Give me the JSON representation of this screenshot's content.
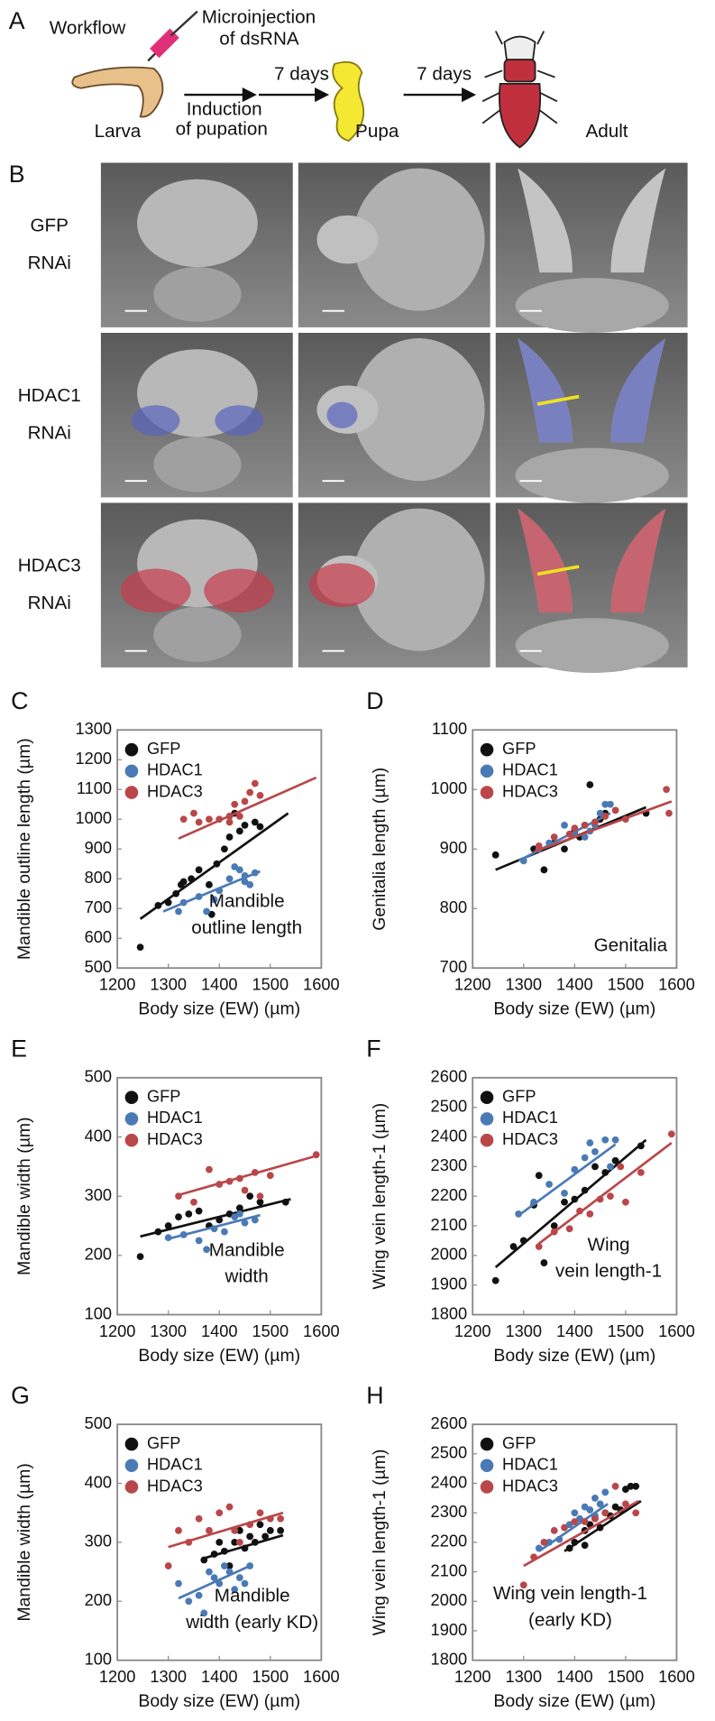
{
  "panel_a": {
    "letter": "A",
    "title": "Workflow",
    "injection": [
      "Microinjection",
      "of dsRNA"
    ],
    "stages": [
      "Larva",
      "Pupa",
      "Adult"
    ],
    "induction": [
      "Induction",
      "of pupation"
    ],
    "durations": [
      "7 days",
      "7 days"
    ]
  },
  "panel_b": {
    "letter": "B",
    "rows": [
      [
        "GFP",
        "RNAi"
      ],
      [
        "HDAC1",
        "RNAi"
      ],
      [
        "HDAC3",
        "RNAi"
      ]
    ]
  },
  "chart_data": [
    {
      "type": "scatter",
      "panel": "C",
      "xlabel": "Body size (EW) (µm)",
      "ylabel": "Mandible outline length (µm)",
      "annotation": [
        "Mandible",
        "outline length"
      ],
      "xlim": [
        1200,
        1600
      ],
      "xticks": [
        1200,
        1300,
        1400,
        1500,
        1600
      ],
      "ylim": [
        500,
        1300
      ],
      "yticks": [
        500,
        600,
        700,
        800,
        900,
        1000,
        1100,
        1200,
        1300
      ],
      "legend": "upper left",
      "series": [
        {
          "name": "GFP",
          "color": "#111111",
          "x": [
            1245,
            1280,
            1300,
            1315,
            1325,
            1330,
            1345,
            1360,
            1380,
            1385,
            1395,
            1410,
            1420,
            1430,
            1440,
            1450,
            1470,
            1480
          ],
          "values": [
            570,
            710,
            720,
            750,
            780,
            790,
            800,
            830,
            780,
            680,
            850,
            900,
            940,
            1020,
            960,
            980,
            990,
            975
          ],
          "fit_x": [
            1245,
            1535
          ],
          "fit_y": [
            665,
            1020
          ]
        },
        {
          "name": "HDAC1",
          "color": "#4a7ab5",
          "x": [
            1320,
            1330,
            1360,
            1375,
            1390,
            1400,
            1420,
            1430,
            1440,
            1450,
            1460,
            1470,
            1450
          ],
          "values": [
            690,
            720,
            740,
            690,
            730,
            760,
            800,
            840,
            830,
            810,
            780,
            820,
            790
          ],
          "fit_x": [
            1290,
            1480
          ],
          "fit_y": [
            690,
            825
          ]
        },
        {
          "name": "HDAC3",
          "color": "#b9474a",
          "x": [
            1330,
            1350,
            1360,
            1380,
            1400,
            1420,
            1430,
            1440,
            1450,
            1460,
            1470,
            1480,
            1420
          ],
          "values": [
            1000,
            1020,
            990,
            1000,
            1000,
            990,
            1050,
            1010,
            1060,
            1090,
            1120,
            1080,
            1010
          ],
          "fit_x": [
            1320,
            1590
          ],
          "fit_y": [
            935,
            1140
          ]
        }
      ]
    },
    {
      "type": "scatter",
      "panel": "D",
      "xlabel": "Body size (EW) (µm)",
      "ylabel": "Genitalia length (µm)",
      "annotation": [
        "Genitalia"
      ],
      "xlim": [
        1200,
        1600
      ],
      "xticks": [
        1200,
        1300,
        1400,
        1500,
        1600
      ],
      "ylim": [
        700,
        1100
      ],
      "yticks": [
        700,
        800,
        900,
        1000,
        1100
      ],
      "legend": "upper left",
      "series": [
        {
          "name": "GFP",
          "color": "#111111",
          "x": [
            1245,
            1320,
            1340,
            1360,
            1380,
            1400,
            1410,
            1420,
            1430,
            1440,
            1450,
            1460,
            1540
          ],
          "values": [
            890,
            900,
            865,
            910,
            900,
            930,
            920,
            940,
            1008,
            945,
            950,
            960,
            960
          ],
          "fit_x": [
            1245,
            1540
          ],
          "fit_y": [
            865,
            970
          ]
        },
        {
          "name": "HDAC1",
          "color": "#4a7ab5",
          "x": [
            1300,
            1330,
            1350,
            1380,
            1400,
            1420,
            1440,
            1450,
            1460,
            1470,
            1430
          ],
          "values": [
            880,
            900,
            910,
            940,
            925,
            920,
            940,
            960,
            975,
            975,
            930
          ],
          "fit_x": [
            1290,
            1470
          ],
          "fit_y": [
            880,
            960
          ]
        },
        {
          "name": "HDAC3",
          "color": "#b9474a",
          "x": [
            1330,
            1360,
            1390,
            1400,
            1420,
            1440,
            1460,
            1480,
            1500,
            1580,
            1585
          ],
          "values": [
            905,
            920,
            925,
            935,
            940,
            945,
            955,
            965,
            950,
            1000,
            960
          ],
          "fit_x": [
            1320,
            1590
          ],
          "fit_y": [
            895,
            980
          ]
        }
      ]
    },
    {
      "type": "scatter",
      "panel": "E",
      "xlabel": "Body size (EW) (µm)",
      "ylabel": "Mandible width (µm)",
      "annotation": [
        "Mandible",
        "width"
      ],
      "xlim": [
        1200,
        1600
      ],
      "xticks": [
        1200,
        1300,
        1400,
        1500,
        1600
      ],
      "ylim": [
        100,
        500
      ],
      "yticks": [
        100,
        200,
        300,
        400,
        500
      ],
      "legend": "upper left",
      "series": [
        {
          "name": "GFP",
          "color": "#111111",
          "x": [
            1245,
            1280,
            1300,
            1320,
            1340,
            1360,
            1380,
            1400,
            1420,
            1440,
            1460,
            1480,
            1530
          ],
          "values": [
            198,
            240,
            250,
            265,
            270,
            275,
            250,
            260,
            270,
            280,
            300,
            290,
            290
          ],
          "fit_x": [
            1245,
            1540
          ],
          "fit_y": [
            232,
            295
          ]
        },
        {
          "name": "HDAC1",
          "color": "#4a7ab5",
          "x": [
            1300,
            1330,
            1360,
            1375,
            1390,
            1410,
            1430,
            1450,
            1470,
            1440
          ],
          "values": [
            230,
            235,
            225,
            210,
            245,
            240,
            265,
            255,
            260,
            270
          ],
          "fit_x": [
            1300,
            1480
          ],
          "fit_y": [
            228,
            268
          ]
        },
        {
          "name": "HDAC3",
          "color": "#b9474a",
          "x": [
            1320,
            1350,
            1380,
            1400,
            1420,
            1440,
            1450,
            1470,
            1480,
            1500,
            1590
          ],
          "values": [
            300,
            290,
            345,
            320,
            325,
            330,
            310,
            340,
            300,
            335,
            370
          ],
          "fit_x": [
            1320,
            1590
          ],
          "fit_y": [
            302,
            368
          ]
        }
      ]
    },
    {
      "type": "scatter",
      "panel": "F",
      "xlabel": "Body size (EW) (µm)",
      "ylabel": "Wing vein length-1 (µm)",
      "annotation": [
        "Wing",
        "vein length-1"
      ],
      "xlim": [
        1200,
        1600
      ],
      "xticks": [
        1200,
        1300,
        1400,
        1500,
        1600
      ],
      "ylim": [
        1800,
        2600
      ],
      "yticks": [
        1800,
        1900,
        2000,
        2100,
        2200,
        2300,
        2400,
        2500,
        2600
      ],
      "legend": "upper left",
      "series": [
        {
          "name": "GFP",
          "color": "#111111",
          "x": [
            1245,
            1280,
            1300,
            1320,
            1330,
            1340,
            1360,
            1380,
            1400,
            1420,
            1440,
            1460,
            1480,
            1530
          ],
          "values": [
            1915,
            2030,
            2050,
            2170,
            2270,
            1975,
            2100,
            2180,
            2190,
            2220,
            2300,
            2280,
            2320,
            2370
          ],
          "fit_x": [
            1245,
            1540
          ],
          "fit_y": [
            1960,
            2390
          ]
        },
        {
          "name": "HDAC1",
          "color": "#4a7ab5",
          "x": [
            1290,
            1320,
            1350,
            1380,
            1400,
            1420,
            1430,
            1440,
            1460,
            1470,
            1480
          ],
          "values": [
            2140,
            2180,
            2240,
            2210,
            2290,
            2330,
            2380,
            2350,
            2390,
            2300,
            2390
          ],
          "fit_x": [
            1290,
            1480
          ],
          "fit_y": [
            2135,
            2375
          ]
        },
        {
          "name": "HDAC3",
          "color": "#b9474a",
          "x": [
            1330,
            1360,
            1390,
            1410,
            1430,
            1450,
            1470,
            1490,
            1500,
            1530,
            1590
          ],
          "values": [
            2030,
            2080,
            2090,
            2150,
            2140,
            2190,
            2200,
            2300,
            2180,
            2280,
            2410
          ],
          "fit_x": [
            1330,
            1590
          ],
          "fit_y": [
            2040,
            2380
          ]
        }
      ]
    },
    {
      "type": "scatter",
      "panel": "G",
      "xlabel": "Body size (EW) (µm)",
      "ylabel": "Mandible width (µm)",
      "annotation": [
        "Mandible",
        "width (early KD)"
      ],
      "xlim": [
        1200,
        1600
      ],
      "xticks": [
        1200,
        1300,
        1400,
        1500,
        1600
      ],
      "ylim": [
        100,
        500
      ],
      "yticks": [
        100,
        200,
        300,
        400,
        500
      ],
      "legend": "upper left",
      "series": [
        {
          "name": "GFP",
          "color": "#111111",
          "x": [
            1370,
            1390,
            1400,
            1410,
            1420,
            1430,
            1440,
            1450,
            1460,
            1470,
            1480,
            1490,
            1500,
            1520
          ],
          "values": [
            270,
            280,
            300,
            285,
            260,
            300,
            320,
            290,
            310,
            300,
            330,
            310,
            320,
            320
          ],
          "fit_x": [
            1370,
            1525
          ],
          "fit_y": [
            273,
            312
          ]
        },
        {
          "name": "HDAC1",
          "color": "#4a7ab5",
          "x": [
            1320,
            1340,
            1360,
            1370,
            1380,
            1390,
            1400,
            1410,
            1420,
            1430,
            1440,
            1450,
            1460
          ],
          "values": [
            230,
            200,
            210,
            180,
            250,
            240,
            230,
            260,
            250,
            220,
            240,
            230,
            260
          ],
          "fit_x": [
            1320,
            1465
          ],
          "fit_y": [
            205,
            262
          ]
        },
        {
          "name": "HDAC3",
          "color": "#b9474a",
          "x": [
            1300,
            1320,
            1340,
            1360,
            1380,
            1400,
            1420,
            1430,
            1440,
            1460,
            1480,
            1500,
            1520
          ],
          "values": [
            260,
            320,
            300,
            340,
            320,
            350,
            360,
            320,
            300,
            330,
            350,
            340,
            340
          ],
          "fit_x": [
            1300,
            1525
          ],
          "fit_y": [
            292,
            350
          ]
        }
      ]
    },
    {
      "type": "scatter",
      "panel": "H",
      "xlabel": "Body size (EW) (µm)",
      "ylabel": "Wing vein length-1 (µm)",
      "annotation": [
        "Wing vein length-1",
        "(early KD)"
      ],
      "xlim": [
        1200,
        1600
      ],
      "xticks": [
        1200,
        1300,
        1400,
        1500,
        1600
      ],
      "ylim": [
        1800,
        2600
      ],
      "yticks": [
        1800,
        1900,
        2000,
        2100,
        2200,
        2300,
        2400,
        2500,
        2600
      ],
      "legend": "upper left",
      "series": [
        {
          "name": "GFP",
          "color": "#111111",
          "x": [
            1390,
            1400,
            1420,
            1430,
            1440,
            1450,
            1460,
            1470,
            1480,
            1490,
            1500,
            1510,
            1520,
            1420
          ],
          "values": [
            2180,
            2200,
            2240,
            2260,
            2280,
            2250,
            2300,
            2290,
            2320,
            2310,
            2380,
            2390,
            2390,
            2190
          ],
          "fit_x": [
            1380,
            1530
          ],
          "fit_y": [
            2170,
            2340
          ]
        },
        {
          "name": "HDAC1",
          "color": "#4a7ab5",
          "x": [
            1330,
            1350,
            1370,
            1390,
            1400,
            1410,
            1420,
            1430,
            1440,
            1450,
            1460,
            1440
          ],
          "values": [
            2180,
            2200,
            2210,
            2260,
            2300,
            2280,
            2320,
            2310,
            2350,
            2330,
            2370,
            2290
          ],
          "fit_x": [
            1330,
            1465
          ],
          "fit_y": [
            2170,
            2330
          ]
        },
        {
          "name": "HDAC3",
          "color": "#b9474a",
          "x": [
            1300,
            1320,
            1340,
            1360,
            1380,
            1400,
            1420,
            1440,
            1460,
            1480,
            1500,
            1520
          ],
          "values": [
            2055,
            2150,
            2200,
            2240,
            2250,
            2270,
            2270,
            2280,
            2300,
            2390,
            2330,
            2300
          ],
          "fit_x": [
            1300,
            1525
          ],
          "fit_y": [
            2120,
            2340
          ]
        }
      ]
    }
  ]
}
